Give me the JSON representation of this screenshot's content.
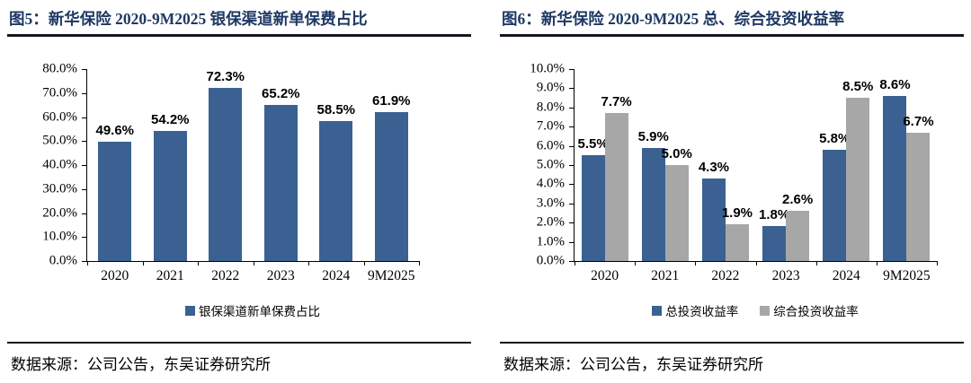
{
  "figure5": {
    "title": "图5：新华保险 2020-9M2025 银保渠道新单保费占比",
    "source": "数据来源：公司公告，东吴证券研究所"
  },
  "figure6": {
    "title": "图6：新华保险 2020-9M2025 总、综合投资收益率",
    "source": "数据来源：公司公告，东吴证券研究所"
  },
  "colors": {
    "title_navy": "#1F3864",
    "bar_blue": "#3A6191",
    "bar_gray": "#A7A7A7",
    "axis_black": "#000000"
  },
  "chart_data": [
    {
      "type": "bar",
      "title": "图5：新华保险 2020-9M2025 银保渠道新单保费占比",
      "categories": [
        "2020",
        "2021",
        "2022",
        "2023",
        "2024",
        "9M2025"
      ],
      "series": [
        {
          "name": "银保渠道新单保费占比",
          "color": "#3A6191",
          "values": [
            49.6,
            54.2,
            72.3,
            65.2,
            58.5,
            61.9
          ]
        }
      ],
      "data_labels": [
        "49.6%",
        "54.2%",
        "72.3%",
        "65.2%",
        "58.5%",
        "61.9%"
      ],
      "xlabel": "",
      "ylabel": "",
      "ylim": [
        0,
        80
      ],
      "ytick_step": 10,
      "ytick_format": "0.0%",
      "grid": false,
      "legend_position": "bottom"
    },
    {
      "type": "bar",
      "title": "图6：新华保险 2020-9M2025 总、综合投资收益率",
      "categories": [
        "2020",
        "2021",
        "2022",
        "2023",
        "2024",
        "9M2025"
      ],
      "series": [
        {
          "name": "总投资收益率",
          "color": "#3A6191",
          "values": [
            5.5,
            5.9,
            4.3,
            1.8,
            5.8,
            8.6
          ]
        },
        {
          "name": "综合投资收益率",
          "color": "#A7A7A7",
          "values": [
            7.7,
            5.0,
            1.9,
            2.6,
            8.5,
            6.7
          ]
        }
      ],
      "data_labels_series": [
        [
          "5.5%",
          "5.9%",
          "4.3%",
          "1.8%",
          "5.8%",
          "8.6%"
        ],
        [
          "7.7%",
          "5.0%",
          "1.9%",
          "2.6%",
          "8.5%",
          "6.7%"
        ]
      ],
      "xlabel": "",
      "ylabel": "",
      "ylim": [
        0,
        10
      ],
      "ytick_step": 1,
      "ytick_format": "0.0%",
      "grid": false,
      "legend_position": "bottom"
    }
  ]
}
